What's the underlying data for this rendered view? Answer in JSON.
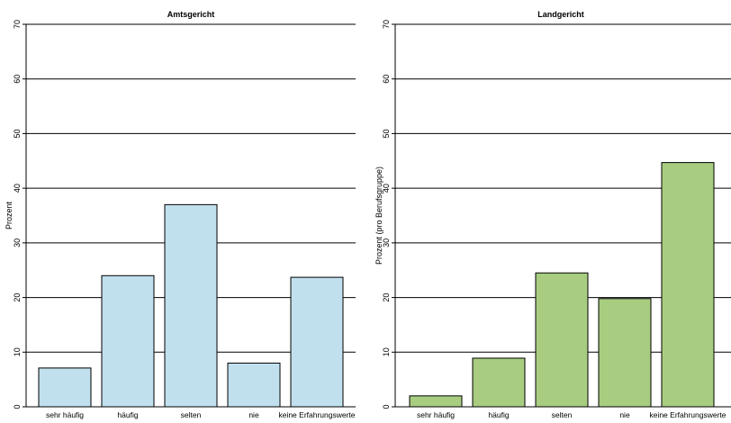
{
  "chart_data": [
    {
      "type": "bar",
      "title": "Amtsgericht",
      "ylabel": "Prozent",
      "xlabel": "",
      "categories": [
        "sehr häufig",
        "häufig",
        "selten",
        "nie",
        "keine Erfahrungswerte"
      ],
      "values": [
        7.1,
        24.0,
        37.0,
        8.0,
        23.7
      ],
      "ylim": [
        0,
        70
      ],
      "yticks": [
        0,
        10,
        20,
        30,
        40,
        50,
        60,
        70
      ],
      "bar_color": "#c1e0ee",
      "grid": "horizontal"
    },
    {
      "type": "bar",
      "title": "Landgericht",
      "ylabel": "Prozent (pro Berufsgruppe)",
      "xlabel": "",
      "categories": [
        "sehr häufig",
        "häufig",
        "selten",
        "nie",
        "keine Erfahrungswerte"
      ],
      "values": [
        2.0,
        8.9,
        24.5,
        19.8,
        44.7
      ],
      "ylim": [
        0,
        70
      ],
      "yticks": [
        0,
        10,
        20,
        30,
        40,
        50,
        60,
        70
      ],
      "bar_color": "#a8cd80",
      "grid": "horizontal"
    }
  ]
}
